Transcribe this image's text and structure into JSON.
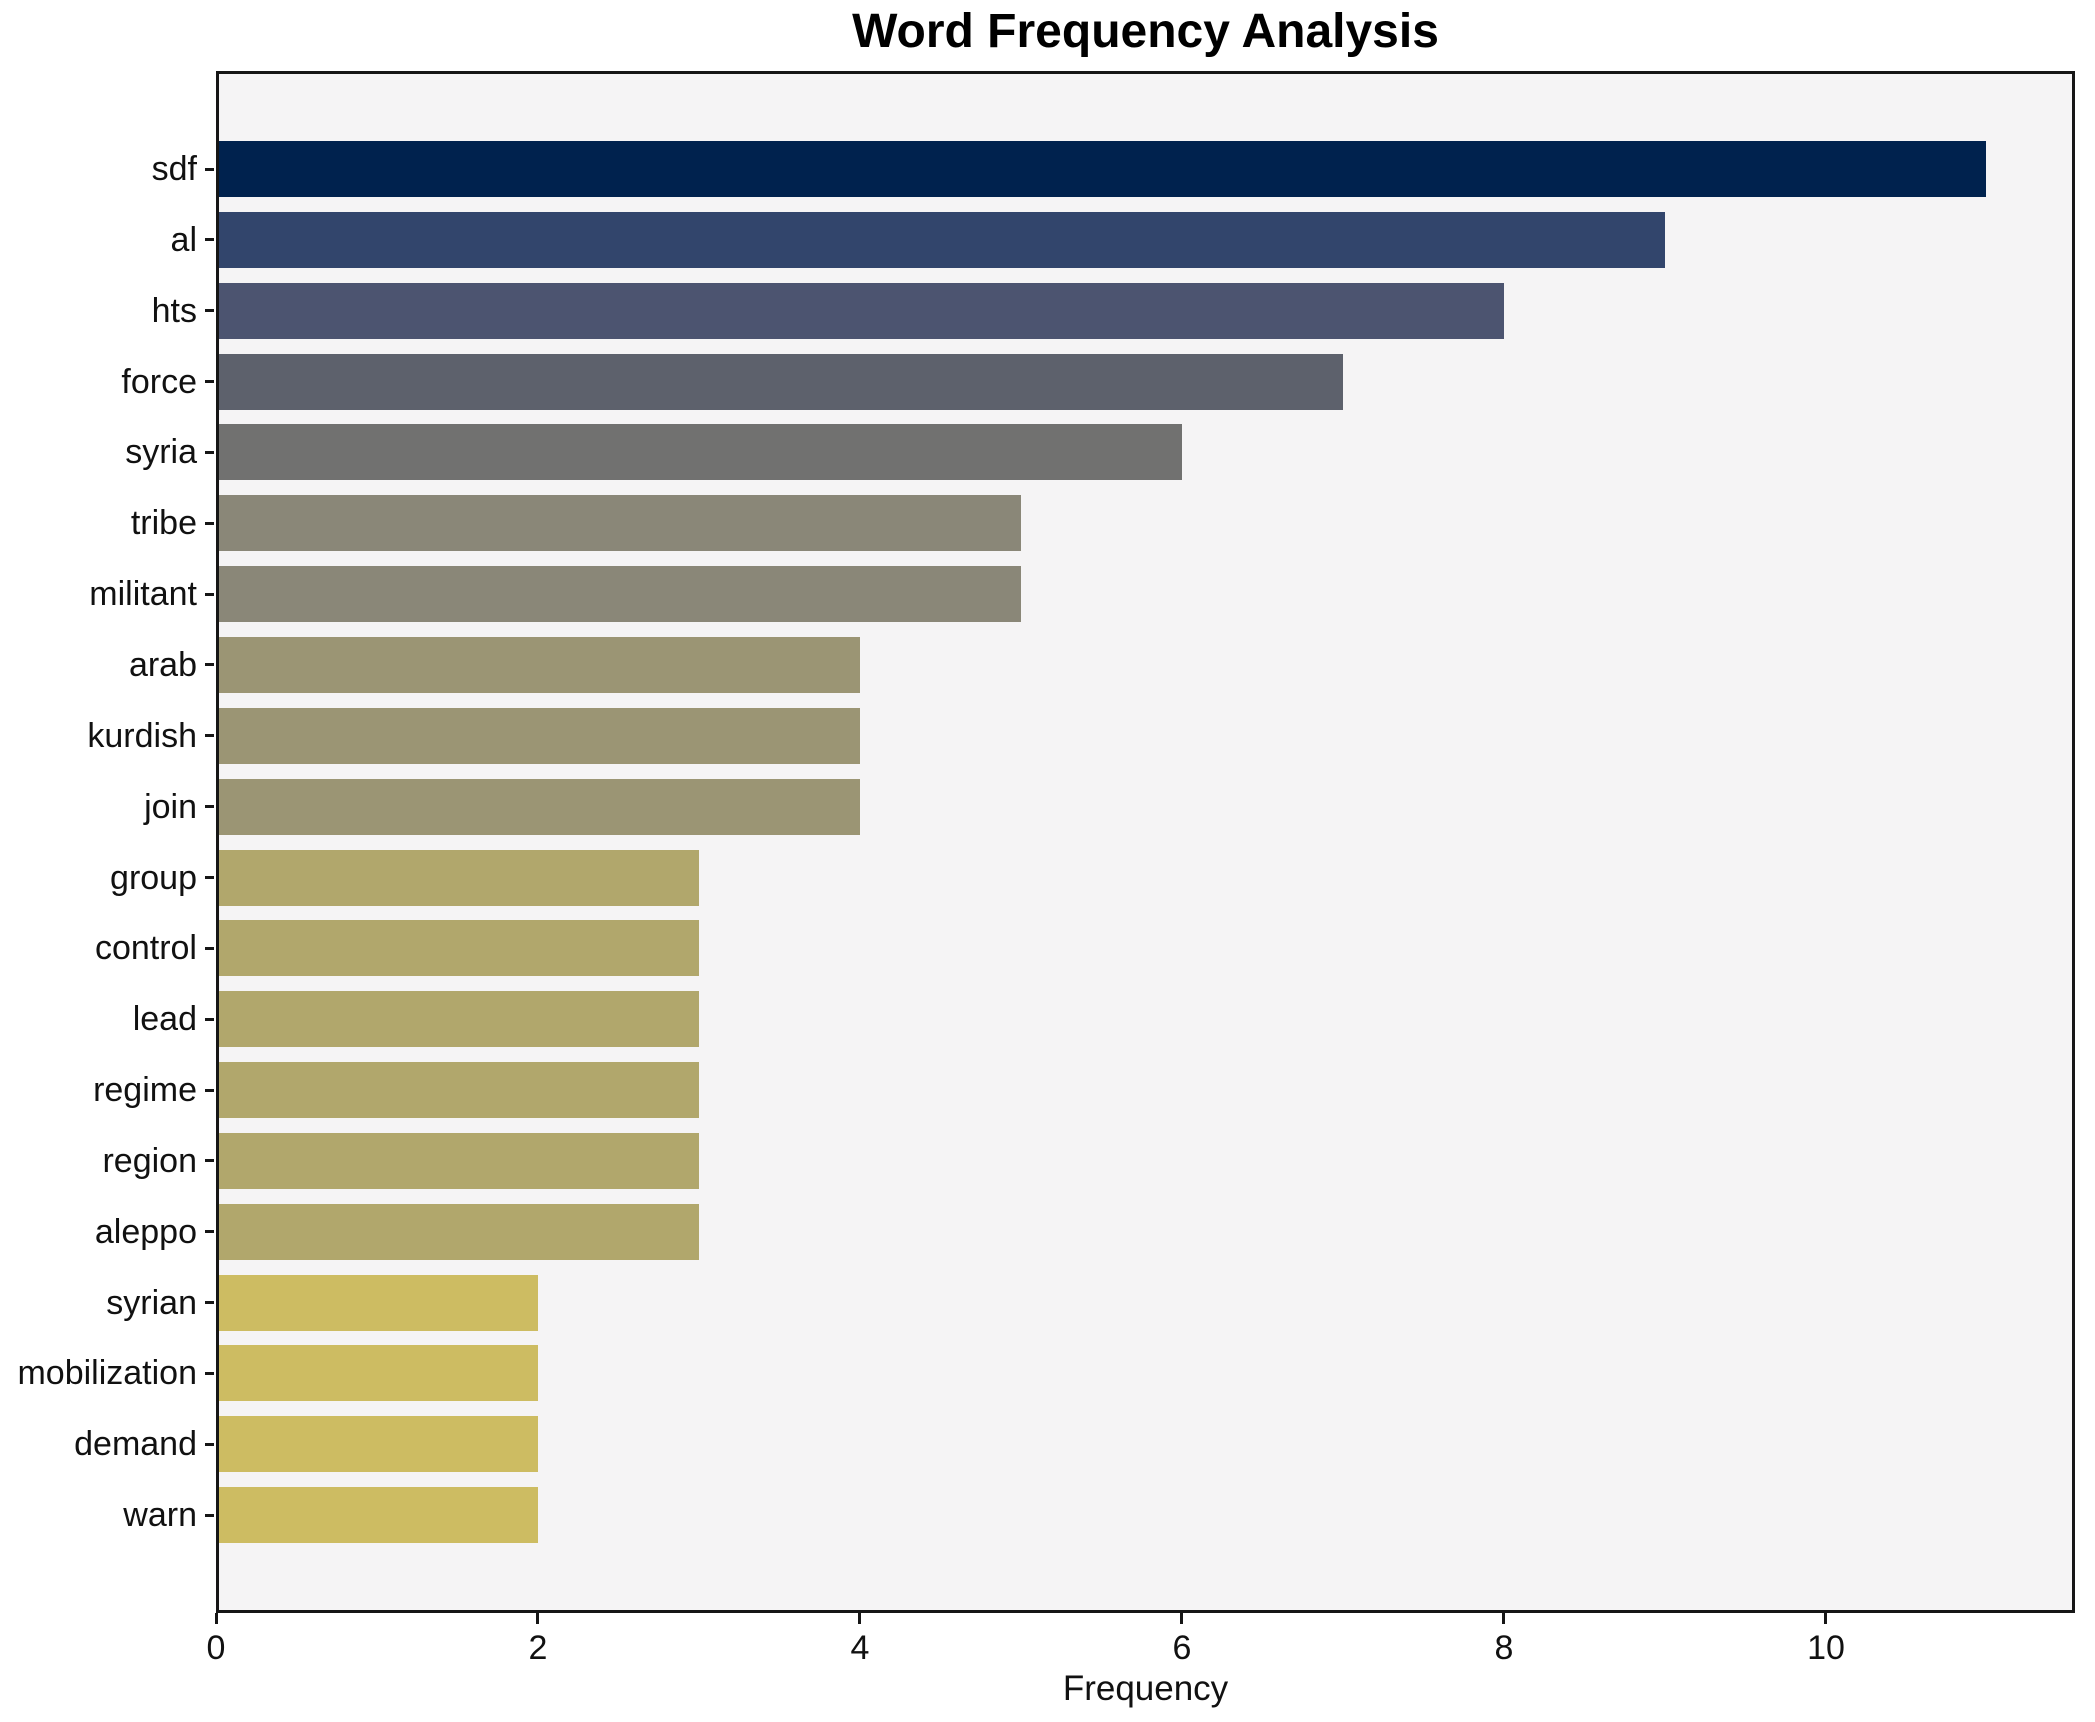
{
  "chart_data": {
    "type": "bar",
    "orientation": "horizontal",
    "title": "Word Frequency Analysis",
    "xlabel": "Frequency",
    "ylabel": "",
    "categories": [
      "sdf",
      "al",
      "hts",
      "force",
      "syria",
      "tribe",
      "militant",
      "arab",
      "kurdish",
      "join",
      "group",
      "control",
      "lead",
      "regime",
      "region",
      "aleppo",
      "syrian",
      "mobilization",
      "demand",
      "warn"
    ],
    "values": [
      11,
      9,
      8,
      7,
      6,
      5,
      5,
      4,
      4,
      4,
      3,
      3,
      3,
      3,
      3,
      3,
      2,
      2,
      2,
      2
    ],
    "bar_colors": [
      "#00224e",
      "#32456c",
      "#4c5470",
      "#5d616c",
      "#717170",
      "#8a8778",
      "#8a8778",
      "#9b9574",
      "#9b9574",
      "#9b9574",
      "#b1a76c",
      "#b1a76c",
      "#b1a76c",
      "#b1a76c",
      "#b1a76c",
      "#b1a76c",
      "#cdbc62",
      "#cdbc62",
      "#cdbc62",
      "#cdbc62"
    ],
    "x_ticks": [
      0,
      2,
      4,
      6,
      8,
      10
    ],
    "xlim": [
      0,
      11.55
    ],
    "grid": false,
    "legend": null,
    "plot_background": "#f5f4f5",
    "spine_color": "#161616"
  }
}
